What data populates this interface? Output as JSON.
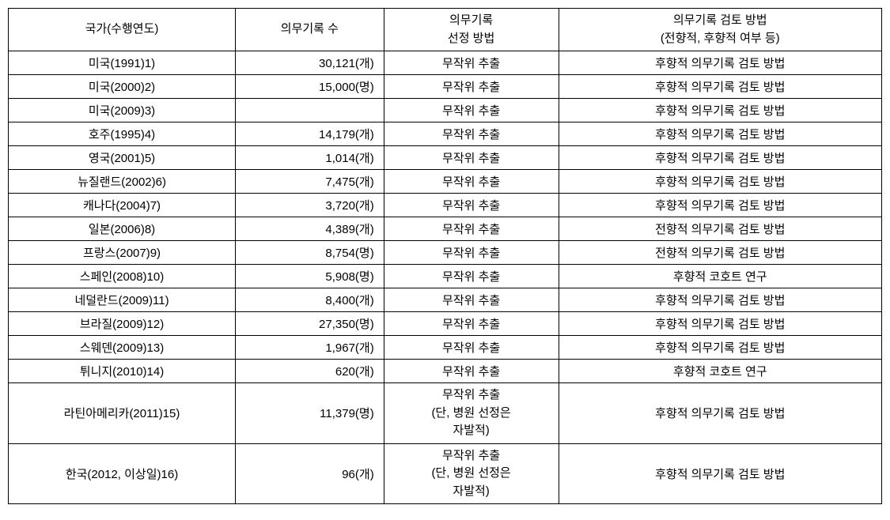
{
  "table": {
    "headers": {
      "col1": "국가(수행연도)",
      "col2": "의무기록 수",
      "col3_line1": "의무기록",
      "col3_line2": "선정 방법",
      "col4_line1": "의무기록 검토 방법",
      "col4_line2": "(전향적, 후향적 여부 등)"
    },
    "rows": [
      {
        "country": "미국(1991)1)",
        "count": "30,121(개)",
        "method": "무작위 추출",
        "review": "후향적 의무기록 검토 방법"
      },
      {
        "country": "미국(2000)2)",
        "count": "15,000(명)",
        "method": "무작위 추출",
        "review": "후향적 의무기록 검토 방법"
      },
      {
        "country": "미국(2009)3)",
        "count": "",
        "method": "무작위 추출",
        "review": "후향적 의무기록 검토 방법"
      },
      {
        "country": "호주(1995)4)",
        "count": "14,179(개)",
        "method": "무작위 추출",
        "review": "후향적 의무기록 검토 방법"
      },
      {
        "country": "영국(2001)5)",
        "count": "1,014(개)",
        "method": "무작위 추출",
        "review": "후향적 의무기록 검토 방법"
      },
      {
        "country": "뉴질랜드(2002)6)",
        "count": "7,475(개)",
        "method": "무작위 추출",
        "review": "후향적 의무기록 검토 방법"
      },
      {
        "country": "캐나다(2004)7)",
        "count": "3,720(개)",
        "method": "무작위 추출",
        "review": "후향적 의무기록 검토 방법"
      },
      {
        "country": "일본(2006)8)",
        "count": "4,389(개)",
        "method": "무작위 추출",
        "review": "전향적 의무기록 검토 방법"
      },
      {
        "country": "프랑스(2007)9)",
        "count": "8,754(명)",
        "method": "무작위 추출",
        "review": "전향적 의무기록 검토 방법"
      },
      {
        "country": "스페인(2008)10)",
        "count": "5,908(명)",
        "method": "무작위 추출",
        "review": "후향적 코호트 연구"
      },
      {
        "country": "네덜란드(2009)11)",
        "count": "8,400(개)",
        "method": "무작위 추출",
        "review": "후향적 의무기록 검토 방법"
      },
      {
        "country": "브라질(2009)12)",
        "count": "27,350(명)",
        "method": "무작위 추출",
        "review": "후향적 의무기록 검토 방법"
      },
      {
        "country": "스웨덴(2009)13)",
        "count": "1,967(개)",
        "method": "무작위 추출",
        "review": "후향적 의무기록 검토 방법"
      },
      {
        "country": "튀니지(2010)14)",
        "count": "620(개)",
        "method": "무작위 추출",
        "review": "후향적 코호트 연구"
      }
    ],
    "multilineRows": [
      {
        "country": "라틴아메리카(2011)15)",
        "count": "11,379(명)",
        "method_line1": "무작위 추출",
        "method_line2": "(단, 병원 선정은",
        "method_line3": "자발적)",
        "review": "후향적 의무기록 검토 방법"
      },
      {
        "country": "한국(2012, 이상일)16)",
        "count": "96(개)",
        "method_line1": "무작위 추출",
        "method_line2": "(단, 병원 선정은",
        "method_line3": "자발적)",
        "review": "후향적 의무기록 검토 방법"
      }
    ]
  },
  "styles": {
    "border_color": "#000000",
    "background_color": "#ffffff",
    "font_size": 15,
    "font_family": "Malgun Gothic"
  }
}
